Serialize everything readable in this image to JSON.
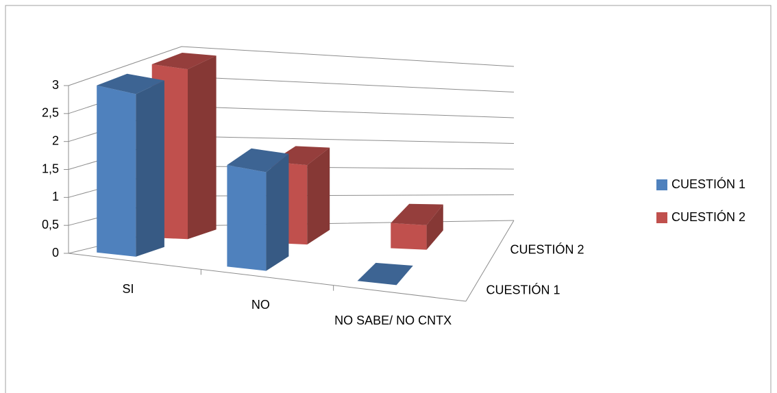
{
  "chart_data": {
    "type": "bar3d",
    "categories": [
      "SI",
      "NO",
      "NO SABE/ NO CNTX"
    ],
    "series": [
      {
        "name": "CUESTIÓN 1",
        "color": "#4f81bd",
        "values": [
          3,
          2,
          0
        ]
      },
      {
        "name": "CUESTIÓN 2",
        "color": "#c0504d",
        "values": [
          3,
          1.5,
          0.5
        ]
      }
    ],
    "ylim": [
      0,
      3
    ],
    "yticks": [
      0,
      {
        "value": 0.5,
        "label": "0,5"
      },
      1,
      {
        "value": 1.5,
        "label": "1,5"
      },
      2,
      {
        "value": 2.5,
        "label": "2,5"
      },
      3
    ],
    "grid": true,
    "legend": "right"
  }
}
